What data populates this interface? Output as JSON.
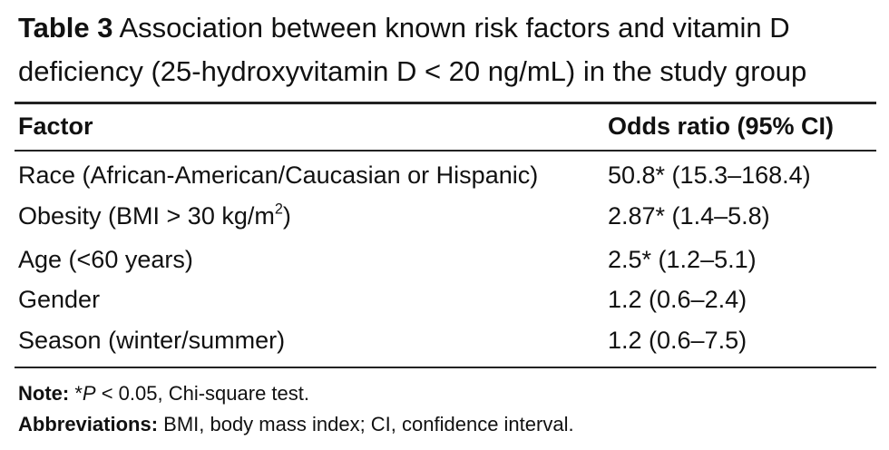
{
  "caption": {
    "label": "Table 3",
    "lines": [
      "Association between known risk factors and vitamin D",
      "deficiency (25-hydroxyvitamin D < 20 ng/mL) in the study group"
    ]
  },
  "table": {
    "headers": [
      "Factor",
      "Odds ratio (95% CI)"
    ],
    "rows": [
      [
        {
          "text": "Race (African-American/Caucasian or Hispanic)"
        },
        "50.8* (15.3–168.4)"
      ],
      [
        {
          "text": "Obesity (BMI > 30 kg/m",
          "sup": "2",
          "after": ")"
        },
        "2.87* (1.4–5.8)"
      ],
      [
        {
          "text": "Age (<60 years)"
        },
        "2.5* (1.2–5.1)"
      ],
      [
        {
          "text": "Gender"
        },
        "1.2 (0.6–2.4)"
      ],
      [
        {
          "text": "Season (winter/summer)"
        },
        "1.2 (0.6–7.5)"
      ]
    ]
  },
  "note": {
    "label": "Note:",
    "star": "*",
    "p": "P",
    "text": " < 0.05, Chi-square test."
  },
  "abbreviations": {
    "label": "Abbreviations:",
    "text": " BMI, body mass index; CI, confidence interval."
  }
}
